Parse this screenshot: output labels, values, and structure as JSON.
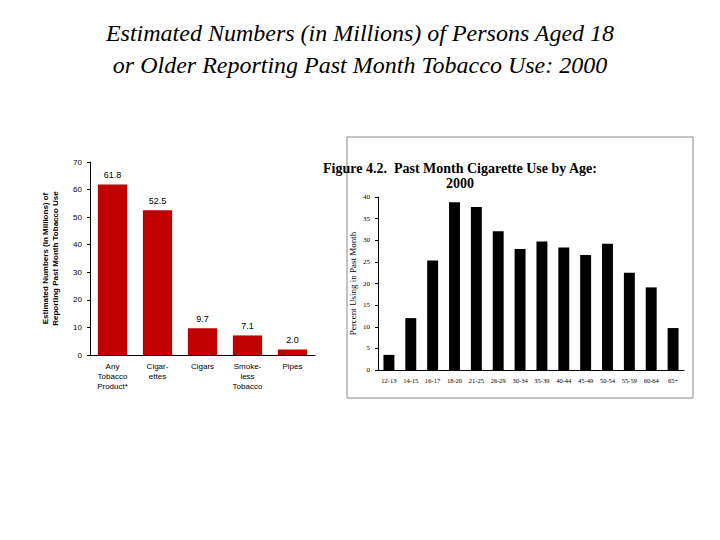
{
  "title": "Estimated Numbers (in Millions) of Persons Aged 18\nor Older Reporting Past Month Tobacco Use: 2000",
  "chart_data": [
    {
      "type": "bar",
      "y_label": "Estimated Numbers (in Millions) of\nReporting Past Month Tobacco Use",
      "categories": [
        "Any\nTobacco\nProduct*",
        "Cigar-\nettes",
        "Cigars",
        "Smoke-\nless\nTobacco",
        "Pipes"
      ],
      "values": [
        61.8,
        52.5,
        9.7,
        7.1,
        2.0
      ],
      "value_labels": [
        "61.8",
        "52.5",
        "9.7",
        "7.1",
        "2.0"
      ],
      "color": "#c00000",
      "ylim": [
        0,
        70
      ],
      "yticks": [
        0,
        10,
        20,
        30,
        40,
        50,
        60,
        70
      ],
      "grid": false,
      "data_labels": true
    },
    {
      "type": "bar",
      "title": "Figure 4.2.  Past Month Cigarette Use by Age:\n2000",
      "y_label": "Percent Using in Past Month",
      "categories": [
        "12-13",
        "14-15",
        "16-17",
        "18-20",
        "21-25",
        "26-29",
        "30-34",
        "35-39",
        "40-44",
        "45-49",
        "50-54",
        "55-59",
        "60-64",
        "65+"
      ],
      "values": [
        3.5,
        12,
        25.3,
        38.8,
        37.7,
        32.1,
        28,
        29.7,
        28.3,
        26.6,
        29.2,
        22.5,
        19.1,
        9.7
      ],
      "color": "#000000",
      "ylim": [
        0,
        40
      ],
      "yticks": [
        0,
        5,
        10,
        15,
        20,
        25,
        30,
        35,
        40
      ],
      "grid": false,
      "data_labels": false
    }
  ]
}
